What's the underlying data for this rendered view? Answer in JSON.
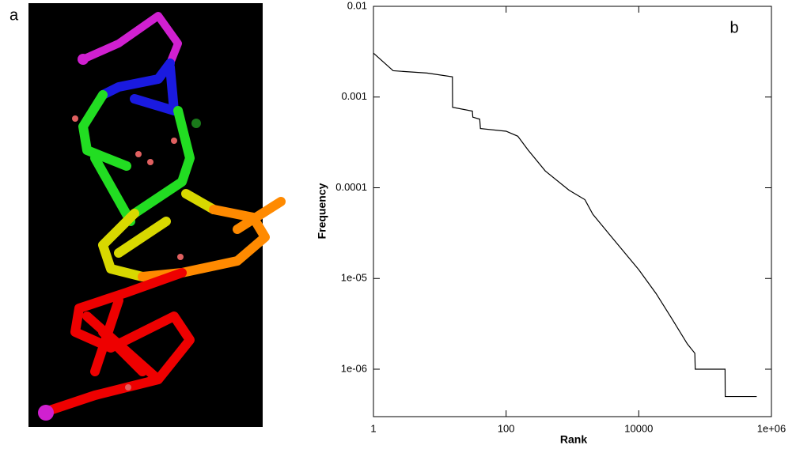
{
  "panel_a": {
    "label": "a"
  },
  "chart_data": {
    "type": "line",
    "annotation": "b",
    "xlabel": "Rank",
    "ylabel": "Frequency",
    "xscale": "log",
    "yscale": "log",
    "xlim": [
      1,
      1000000
    ],
    "ylim": [
      3e-07,
      0.01
    ],
    "xticks": [
      1,
      100,
      10000,
      {
        "value": 1000000,
        "label": "1e+06"
      }
    ],
    "yticks": [
      0.01,
      0.001,
      0.0001,
      {
        "value": 1e-05,
        "label": "1e-05"
      },
      {
        "value": 1e-06,
        "label": "1e-06"
      }
    ],
    "series": [
      {
        "color": "#000000",
        "x": [
          1,
          1.98,
          6.4,
          15.5,
          15.6,
          31,
          31.5,
          40,
          41,
          100,
          150,
          215,
          390,
          890,
          1540,
          2030,
          3560,
          10000,
          18300,
          31600,
          54000,
          70000,
          71000,
          100000,
          200000,
          201000,
          600000
        ],
        "values": [
          0.00305,
          0.00195,
          0.00184,
          0.00167,
          0.00077,
          0.0007,
          0.0006,
          0.00057,
          0.00045,
          0.00042,
          0.00037,
          0.00026,
          0.000153,
          9.4e-05,
          7.4e-05,
          5.1e-05,
          3.1e-05,
          1.25e-05,
          6.8e-06,
          3.6e-06,
          1.9e-06,
          1.5e-06,
          1e-06,
          1e-06,
          1e-06,
          5e-07,
          5e-07
        ]
      }
    ]
  }
}
